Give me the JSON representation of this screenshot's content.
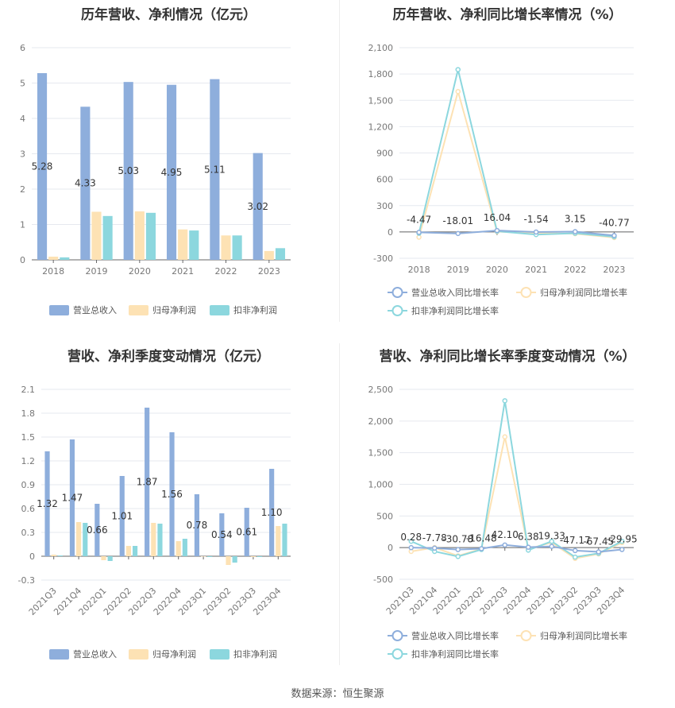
{
  "source_label": "数据来源：恒生聚源",
  "colors": {
    "revenue": "#8eaedc",
    "parent_net": "#fde2b4",
    "deducted_net": "#8cd7de",
    "line_revenue": "#8eaedc",
    "line_parent": "#fde2b4",
    "line_deducted": "#8cd7de"
  },
  "chart_data": [
    {
      "id": "c1",
      "type": "bar",
      "title": "历年营收、净利情况（亿元）",
      "categories": [
        "2018",
        "2019",
        "2020",
        "2021",
        "2022",
        "2023"
      ],
      "series": [
        {
          "name": "营业总收入",
          "values": [
            5.28,
            4.33,
            5.03,
            4.95,
            5.11,
            3.02
          ]
        },
        {
          "name": "归母净利润",
          "values": [
            0.09,
            1.36,
            1.37,
            0.86,
            0.69,
            0.25
          ]
        },
        {
          "name": "扣非净利润",
          "values": [
            0.07,
            1.24,
            1.33,
            0.83,
            0.69,
            0.33
          ]
        }
      ],
      "data_labels": [
        "5.28",
        "4.33",
        "5.03",
        "4.95",
        "5.11",
        "3.02"
      ],
      "ylim": [
        0,
        6
      ],
      "yticks": [
        "0",
        "1",
        "2",
        "3",
        "4",
        "5",
        "6"
      ],
      "grid": true,
      "legend": "bottom"
    },
    {
      "id": "c2",
      "type": "line",
      "title": "历年营收、净利同比增长率情况（%）",
      "categories": [
        "2018",
        "2019",
        "2020",
        "2021",
        "2022",
        "2023"
      ],
      "series": [
        {
          "name": "营业总收入同比增长率",
          "values": [
            -4.47,
            -18.01,
            16.04,
            -1.54,
            3.15,
            -40.77
          ]
        },
        {
          "name": "归母净利润同比增长率",
          "values": [
            -60,
            1600,
            3,
            -12,
            -20,
            -64
          ]
        },
        {
          "name": "扣非净利润同比增长率",
          "values": [
            -15,
            1850,
            8,
            -30,
            -15,
            -55
          ]
        }
      ],
      "data_labels": [
        "-4.47",
        "-18.01",
        "16.04",
        "-1.54",
        "3.15",
        "-40.77"
      ],
      "ylim": [
        -300,
        2100
      ],
      "yticks": [
        "-300",
        "0",
        "300",
        "600",
        "900",
        "1,200",
        "1,500",
        "1,800",
        "2,100"
      ],
      "grid": true,
      "legend": "bottom"
    },
    {
      "id": "c3",
      "type": "bar",
      "title": "营收、净利季度变动情况（亿元）",
      "categories": [
        "2021Q3",
        "2021Q4",
        "2022Q1",
        "2022Q2",
        "2022Q3",
        "2022Q4",
        "2023Q1",
        "2023Q2",
        "2023Q3",
        "2023Q4"
      ],
      "series": [
        {
          "name": "营业总收入",
          "values": [
            1.32,
            1.47,
            0.66,
            1.01,
            1.87,
            1.56,
            0.78,
            0.54,
            0.61,
            1.1
          ]
        },
        {
          "name": "归母净利润",
          "values": [
            0.02,
            0.43,
            -0.05,
            0.13,
            0.42,
            0.19,
            0.0,
            -0.11,
            -0.01,
            0.38
          ]
        },
        {
          "name": "扣非净利润",
          "values": [
            0.01,
            0.42,
            -0.06,
            0.13,
            0.41,
            0.22,
            -0.01,
            -0.08,
            -0.01,
            0.41
          ]
        }
      ],
      "data_labels": [
        "1.32",
        "1.47",
        "0.66",
        "1.01",
        "1.87",
        "1.56",
        "0.78",
        "0.54",
        "0.61",
        "1.10"
      ],
      "ylim": [
        -0.3,
        2.1
      ],
      "yticks": [
        "-0.3",
        "0",
        "0.3",
        "0.6",
        "0.9",
        "1.2",
        "1.5",
        "1.8",
        "2.1"
      ],
      "grid": true,
      "legend": "bottom"
    },
    {
      "id": "c4",
      "type": "line",
      "title": "营收、净利同比增长率季度变动情况（%）",
      "categories": [
        "2021Q3",
        "2021Q4",
        "2022Q1",
        "2022Q2",
        "2022Q3",
        "2022Q4",
        "2023Q1",
        "2023Q2",
        "2023Q3",
        "2023Q4"
      ],
      "series": [
        {
          "name": "营业总收入同比增长率",
          "values": [
            0.28,
            -7.78,
            -30.78,
            -16.48,
            42.1,
            6.38,
            19.33,
            -47.17,
            -67.45,
            -29.95
          ]
        },
        {
          "name": "归母净利润同比增长率",
          "values": [
            -60,
            0,
            -130,
            -20,
            1750,
            -20,
            80,
            -170,
            -100,
            80
          ]
        },
        {
          "name": "扣非净利润同比增长率",
          "values": [
            100,
            -60,
            -140,
            -30,
            2320,
            -40,
            100,
            -150,
            -90,
            100
          ]
        }
      ],
      "data_labels": [
        "0.28",
        "-7.78",
        "-30.78",
        "-16.48",
        "42.10",
        "6.38",
        "19.33",
        "-47.17",
        "-67.45",
        "-29.95"
      ],
      "ylim": [
        -500,
        2500
      ],
      "yticks": [
        "-500",
        "0",
        "500",
        "1,000",
        "1,500",
        "2,000",
        "2,500"
      ],
      "grid": true,
      "legend": "bottom"
    }
  ]
}
